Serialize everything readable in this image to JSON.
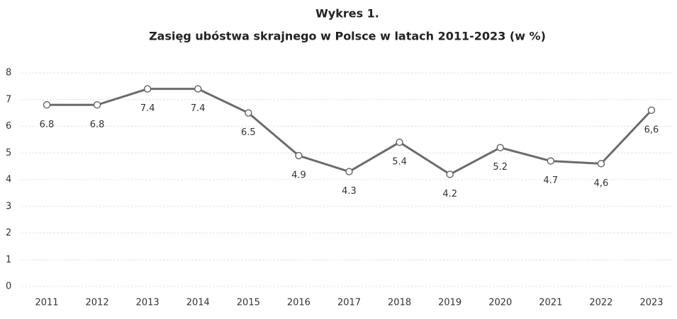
{
  "chart_data": {
    "type": "line",
    "title": "Wykres 1.",
    "subtitle": "Zasięg ubóstwa skrajnego w Polsce w latach 2011-2023 (w %)",
    "categories": [
      "2011",
      "2012",
      "2013",
      "2014",
      "2015",
      "2016",
      "2017",
      "2018",
      "2019",
      "2020",
      "2021",
      "2022",
      "2023"
    ],
    "values": [
      6.8,
      6.8,
      7.4,
      7.4,
      6.5,
      4.9,
      4.3,
      5.4,
      4.2,
      5.2,
      4.7,
      4.6,
      6.6
    ],
    "value_labels": [
      "6.8",
      "6.8",
      "7.4",
      "7.4",
      "6.5",
      "4.9",
      "4.3",
      "5.4",
      "4.2",
      "5.2",
      "4.7",
      "4,6",
      "6,6"
    ],
    "color": "#6b6b6b",
    "ylim": [
      0,
      8
    ],
    "yticks": [
      0,
      1,
      2,
      3,
      4,
      5,
      6,
      7,
      8
    ],
    "grid": true
  }
}
